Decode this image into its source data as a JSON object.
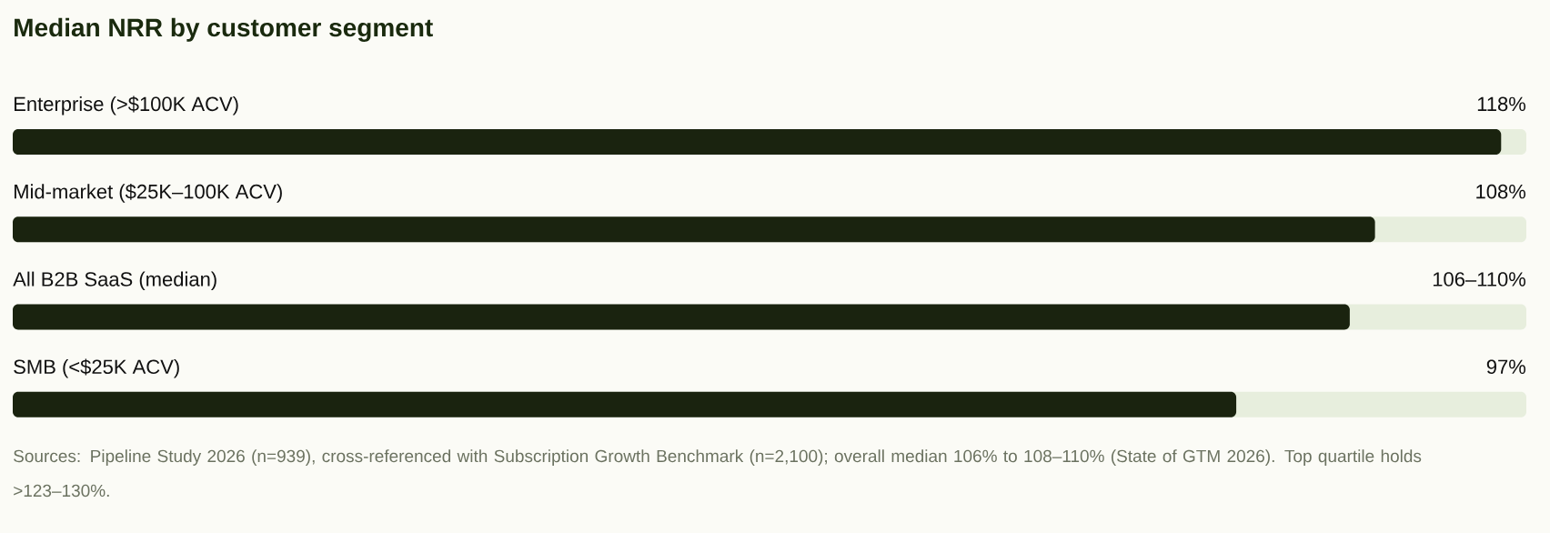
{
  "chart_data": {
    "type": "bar",
    "orientation": "horizontal",
    "title": "Median NRR by customer segment",
    "categories": [
      "Enterprise (>$100K ACV)",
      "Mid-market ($25K–100K ACV)",
      "All B2B SaaS (median)",
      "SMB (<$25K ACV)"
    ],
    "values": [
      118,
      108,
      106,
      97
    ],
    "value_labels": [
      "118%",
      "108%",
      "106–110%",
      "97%"
    ],
    "color": "#1a230f",
    "xlim": [
      0,
      120
    ],
    "tick_labels": false,
    "annotations": [
      "Sources: Pipeline Study 2026 (n=939), cross-referenced with Subscription Growth Benchmark (n=2,100); overall median 106% to 108–110% (State of GTM 2026). Top quartile holds >123–130%."
    ]
  }
}
